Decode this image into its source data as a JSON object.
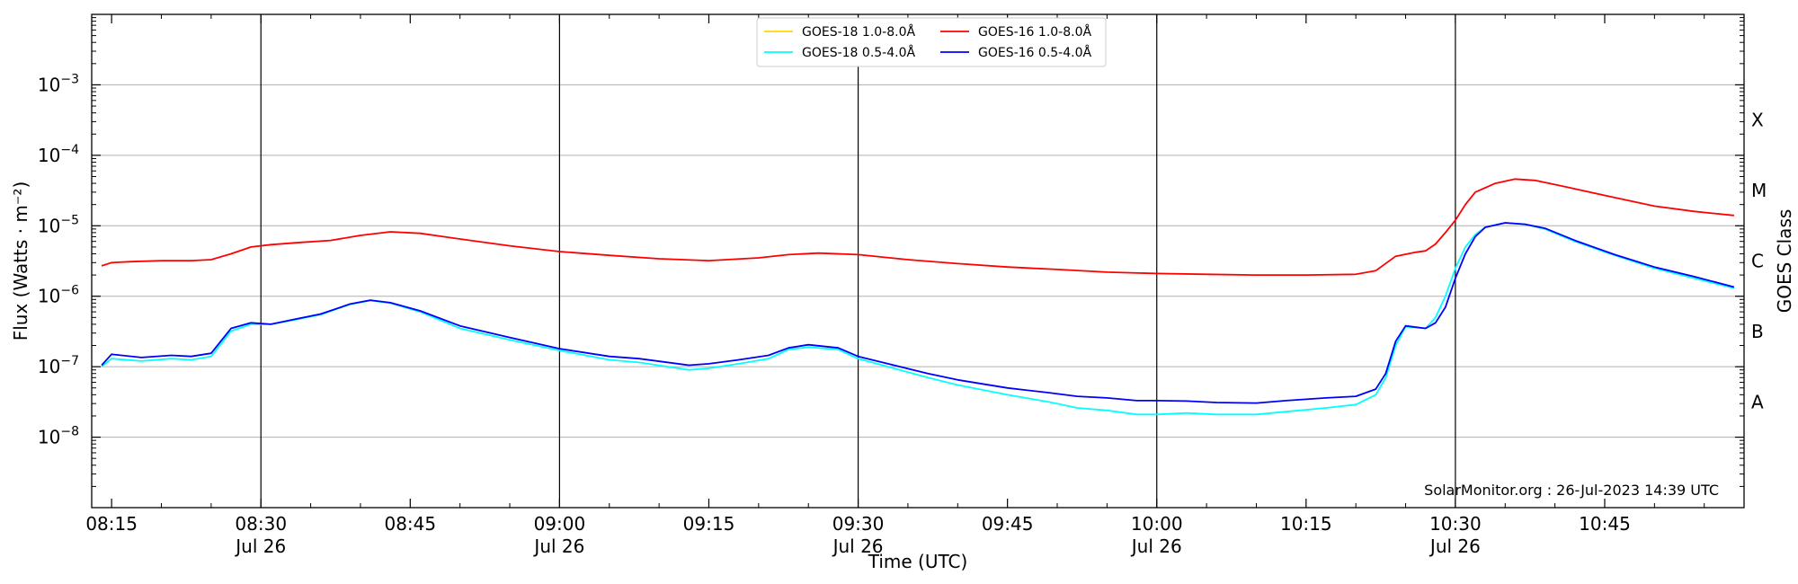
{
  "chart_data": {
    "type": "line",
    "xlabel": "Time (UTC)",
    "ylabel": "Flux (Watts · m⁻²)",
    "y2label": "GOES Class",
    "yscale": "log",
    "xlim": [
      "08:13",
      "10:59"
    ],
    "ylim": [
      1e-09,
      0.01
    ],
    "grid": "horizontal major lines",
    "legend_position": "top-center",
    "annotation": "SolarMonitor.org : 26-Jul-2023 14:39 UTC",
    "x_ticks": [
      {
        "time": "08:15",
        "label": "08:15",
        "sub": ""
      },
      {
        "time": "08:30",
        "label": "08:30",
        "sub": "Jul 26"
      },
      {
        "time": "08:45",
        "label": "08:45",
        "sub": ""
      },
      {
        "time": "09:00",
        "label": "09:00",
        "sub": "Jul 26"
      },
      {
        "time": "09:15",
        "label": "09:15",
        "sub": ""
      },
      {
        "time": "09:30",
        "label": "09:30",
        "sub": "Jul 26"
      },
      {
        "time": "09:45",
        "label": "09:45",
        "sub": ""
      },
      {
        "time": "10:00",
        "label": "10:00",
        "sub": "Jul 26"
      },
      {
        "time": "10:15",
        "label": "10:15",
        "sub": ""
      },
      {
        "time": "10:30",
        "label": "10:30",
        "sub": "Jul 26"
      },
      {
        "time": "10:45",
        "label": "10:45",
        "sub": ""
      }
    ],
    "vertical_lines": [
      "08:30",
      "09:00",
      "09:30",
      "10:00",
      "10:30"
    ],
    "y_ticks": [
      {
        "value": 1e-08,
        "base": "10",
        "exp": "−8"
      },
      {
        "value": 1e-07,
        "base": "10",
        "exp": "−7"
      },
      {
        "value": 1e-06,
        "base": "10",
        "exp": "−6"
      },
      {
        "value": 1e-05,
        "base": "10",
        "exp": "−5"
      },
      {
        "value": 0.0001,
        "base": "10",
        "exp": "−4"
      },
      {
        "value": 0.001,
        "base": "10",
        "exp": "−3"
      }
    ],
    "goes_classes": [
      {
        "label": "A",
        "value": 3.16e-08
      },
      {
        "label": "B",
        "value": 3.16e-07
      },
      {
        "label": "C",
        "value": 3.16e-06
      },
      {
        "label": "M",
        "value": 3.16e-05
      },
      {
        "label": "X",
        "value": 0.000316
      }
    ],
    "legend": [
      {
        "name": "GOES-18 1.0-8.0Å",
        "color": "#ffd700"
      },
      {
        "name": "GOES-18 0.5-4.0Å",
        "color": "#00ffff"
      },
      {
        "name": "GOES-16 1.0-8.0Å",
        "color": "#ff0000"
      },
      {
        "name": "GOES-16 0.5-4.0Å",
        "color": "#0000ff"
      }
    ],
    "series": [
      {
        "name": "GOES-18 1.0-8.0Å",
        "color": "#ffd700",
        "points": []
      },
      {
        "name": "GOES-18 0.5-4.0Å",
        "color": "#00ffff",
        "points": [
          [
            "08:14",
            1e-07
          ],
          [
            "08:15",
            1.3e-07
          ],
          [
            "08:18",
            1.2e-07
          ],
          [
            "08:21",
            1.3e-07
          ],
          [
            "08:23",
            1.25e-07
          ],
          [
            "08:25",
            1.4e-07
          ],
          [
            "08:27",
            3.2e-07
          ],
          [
            "08:29",
            4e-07
          ],
          [
            "08:31",
            4e-07
          ],
          [
            "08:33",
            4.5e-07
          ],
          [
            "08:36",
            5.5e-07
          ],
          [
            "08:39",
            7.7e-07
          ],
          [
            "08:41",
            8.7e-07
          ],
          [
            "08:43",
            8e-07
          ],
          [
            "08:46",
            6e-07
          ],
          [
            "08:50",
            3.5e-07
          ],
          [
            "08:55",
            2.4e-07
          ],
          [
            "09:00",
            1.7e-07
          ],
          [
            "09:05",
            1.25e-07
          ],
          [
            "09:08",
            1.15e-07
          ],
          [
            "09:13",
            9e-08
          ],
          [
            "09:15",
            9.5e-08
          ],
          [
            "09:18",
            1.1e-07
          ],
          [
            "09:21",
            1.3e-07
          ],
          [
            "09:23",
            1.75e-07
          ],
          [
            "09:25",
            1.9e-07
          ],
          [
            "09:28",
            1.75e-07
          ],
          [
            "09:30",
            1.3e-07
          ],
          [
            "09:33",
            1e-07
          ],
          [
            "09:37",
            7e-08
          ],
          [
            "09:40",
            5.5e-08
          ],
          [
            "09:45",
            4e-08
          ],
          [
            "09:49",
            3.2e-08
          ],
          [
            "09:52",
            2.6e-08
          ],
          [
            "09:55",
            2.4e-08
          ],
          [
            "09:58",
            2.1e-08
          ],
          [
            "10:00",
            2.1e-08
          ],
          [
            "10:03",
            2.2e-08
          ],
          [
            "10:06",
            2.1e-08
          ],
          [
            "10:10",
            2.1e-08
          ],
          [
            "10:13",
            2.3e-08
          ],
          [
            "10:17",
            2.6e-08
          ],
          [
            "10:20",
            2.9e-08
          ],
          [
            "10:22",
            4e-08
          ],
          [
            "10:23",
            7e-08
          ],
          [
            "10:24",
            2e-07
          ],
          [
            "10:25",
            3.7e-07
          ],
          [
            "10:27",
            3.5e-07
          ],
          [
            "10:28",
            5e-07
          ],
          [
            "10:29",
            1e-06
          ],
          [
            "10:30",
            2.5e-06
          ],
          [
            "10:31",
            5e-06
          ],
          [
            "10:32",
            7.5e-06
          ],
          [
            "10:33",
            9.5e-06
          ],
          [
            "10:35",
            1.1e-05
          ],
          [
            "10:37",
            1.05e-05
          ],
          [
            "10:39",
            9e-06
          ],
          [
            "10:42",
            6e-06
          ],
          [
            "10:46",
            3.8e-06
          ],
          [
            "10:50",
            2.5e-06
          ],
          [
            "10:54",
            1.8e-06
          ],
          [
            "10:58",
            1.3e-06
          ]
        ]
      },
      {
        "name": "GOES-16 1.0-8.0Å",
        "color": "#ff0000",
        "points": [
          [
            "08:14",
            2.7e-06
          ],
          [
            "08:15",
            3e-06
          ],
          [
            "08:17",
            3.1e-06
          ],
          [
            "08:20",
            3.2e-06
          ],
          [
            "08:23",
            3.2e-06
          ],
          [
            "08:25",
            3.3e-06
          ],
          [
            "08:27",
            4e-06
          ],
          [
            "08:29",
            5e-06
          ],
          [
            "08:31",
            5.4e-06
          ],
          [
            "08:34",
            5.8e-06
          ],
          [
            "08:37",
            6.2e-06
          ],
          [
            "08:40",
            7.3e-06
          ],
          [
            "08:43",
            8.2e-06
          ],
          [
            "08:46",
            7.8e-06
          ],
          [
            "08:50",
            6.5e-06
          ],
          [
            "08:55",
            5.2e-06
          ],
          [
            "09:00",
            4.3e-06
          ],
          [
            "09:05",
            3.8e-06
          ],
          [
            "09:10",
            3.4e-06
          ],
          [
            "09:15",
            3.2e-06
          ],
          [
            "09:20",
            3.5e-06
          ],
          [
            "09:23",
            3.9e-06
          ],
          [
            "09:26",
            4.1e-06
          ],
          [
            "09:30",
            3.9e-06
          ],
          [
            "09:35",
            3.3e-06
          ],
          [
            "09:40",
            2.9e-06
          ],
          [
            "09:45",
            2.6e-06
          ],
          [
            "09:50",
            2.4e-06
          ],
          [
            "09:55",
            2.2e-06
          ],
          [
            "10:00",
            2.1e-06
          ],
          [
            "10:05",
            2.05e-06
          ],
          [
            "10:10",
            2e-06
          ],
          [
            "10:15",
            2e-06
          ],
          [
            "10:20",
            2.05e-06
          ],
          [
            "10:22",
            2.3e-06
          ],
          [
            "10:24",
            3.7e-06
          ],
          [
            "10:26",
            4.2e-06
          ],
          [
            "10:27",
            4.4e-06
          ],
          [
            "10:28",
            5.5e-06
          ],
          [
            "10:29",
            8e-06
          ],
          [
            "10:30",
            1.2e-05
          ],
          [
            "10:31",
            2e-05
          ],
          [
            "10:32",
            3e-05
          ],
          [
            "10:34",
            4e-05
          ],
          [
            "10:36",
            4.6e-05
          ],
          [
            "10:38",
            4.4e-05
          ],
          [
            "10:41",
            3.6e-05
          ],
          [
            "10:45",
            2.7e-05
          ],
          [
            "10:50",
            1.9e-05
          ],
          [
            "10:54",
            1.6e-05
          ],
          [
            "10:58",
            1.4e-05
          ]
        ]
      },
      {
        "name": "GOES-16 0.5-4.0Å",
        "color": "#0000ff",
        "points": [
          [
            "08:14",
            1.05e-07
          ],
          [
            "08:15",
            1.5e-07
          ],
          [
            "08:18",
            1.35e-07
          ],
          [
            "08:21",
            1.45e-07
          ],
          [
            "08:23",
            1.4e-07
          ],
          [
            "08:25",
            1.55e-07
          ],
          [
            "08:27",
            3.5e-07
          ],
          [
            "08:29",
            4.2e-07
          ],
          [
            "08:31",
            4e-07
          ],
          [
            "08:33",
            4.6e-07
          ],
          [
            "08:36",
            5.6e-07
          ],
          [
            "08:39",
            7.8e-07
          ],
          [
            "08:41",
            8.8e-07
          ],
          [
            "08:43",
            8.1e-07
          ],
          [
            "08:46",
            6.2e-07
          ],
          [
            "08:50",
            3.8e-07
          ],
          [
            "08:55",
            2.6e-07
          ],
          [
            "09:00",
            1.8e-07
          ],
          [
            "09:05",
            1.4e-07
          ],
          [
            "09:08",
            1.3e-07
          ],
          [
            "09:13",
            1.05e-07
          ],
          [
            "09:15",
            1.1e-07
          ],
          [
            "09:18",
            1.25e-07
          ],
          [
            "09:21",
            1.45e-07
          ],
          [
            "09:23",
            1.85e-07
          ],
          [
            "09:25",
            2.05e-07
          ],
          [
            "09:28",
            1.85e-07
          ],
          [
            "09:30",
            1.4e-07
          ],
          [
            "09:33",
            1.1e-07
          ],
          [
            "09:37",
            8e-08
          ],
          [
            "09:40",
            6.5e-08
          ],
          [
            "09:45",
            5e-08
          ],
          [
            "09:49",
            4.3e-08
          ],
          [
            "09:52",
            3.8e-08
          ],
          [
            "09:55",
            3.6e-08
          ],
          [
            "09:58",
            3.3e-08
          ],
          [
            "10:00",
            3.3e-08
          ],
          [
            "10:03",
            3.25e-08
          ],
          [
            "10:06",
            3.1e-08
          ],
          [
            "10:10",
            3.05e-08
          ],
          [
            "10:13",
            3.3e-08
          ],
          [
            "10:17",
            3.6e-08
          ],
          [
            "10:20",
            3.8e-08
          ],
          [
            "10:22",
            4.8e-08
          ],
          [
            "10:23",
            8e-08
          ],
          [
            "10:24",
            2.3e-07
          ],
          [
            "10:25",
            3.8e-07
          ],
          [
            "10:27",
            3.5e-07
          ],
          [
            "10:28",
            4.2e-07
          ],
          [
            "10:29",
            7e-07
          ],
          [
            "10:30",
            1.8e-06
          ],
          [
            "10:31",
            4e-06
          ],
          [
            "10:32",
            7e-06
          ],
          [
            "10:33",
            9.5e-06
          ],
          [
            "10:35",
            1.1e-05
          ],
          [
            "10:37",
            1.05e-05
          ],
          [
            "10:39",
            9.2e-06
          ],
          [
            "10:42",
            6.2e-06
          ],
          [
            "10:46",
            3.9e-06
          ],
          [
            "10:50",
            2.6e-06
          ],
          [
            "10:54",
            1.9e-06
          ],
          [
            "10:58",
            1.35e-06
          ]
        ]
      }
    ]
  }
}
